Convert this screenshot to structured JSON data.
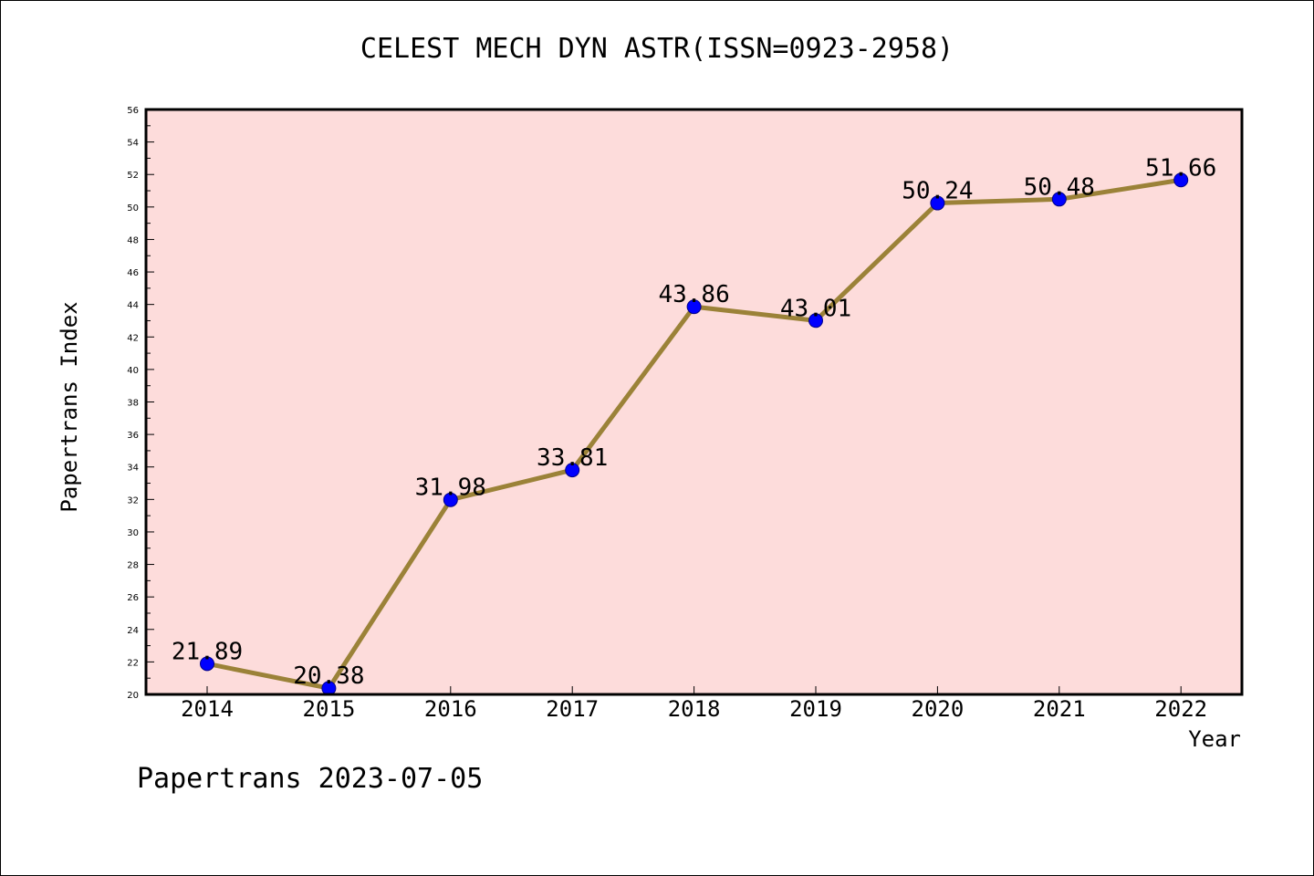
{
  "footer": "Papertrans 2023-07-05",
  "colors": {
    "plot_background": "#fddcdb",
    "line": "#9b8238",
    "marker": "#0000ff",
    "axis": "#000000"
  },
  "chart_data": {
    "type": "line",
    "title": "CELEST MECH DYN ASTR(ISSN=0923-2958)",
    "xlabel": "Year",
    "ylabel": "Papertrans Index",
    "categories": [
      "2014",
      "2015",
      "2016",
      "2017",
      "2018",
      "2019",
      "2020",
      "2021",
      "2022"
    ],
    "values": [
      21.89,
      20.38,
      31.98,
      33.81,
      43.86,
      43.01,
      50.24,
      50.48,
      51.66
    ],
    "data_labels": [
      "21.89",
      "20.38",
      "31.98",
      "33.81",
      "43.86",
      "43.01",
      "50.24",
      "50.48",
      "51.66"
    ],
    "ylim": [
      20,
      56
    ],
    "yticks": [
      20,
      22,
      24,
      26,
      28,
      30,
      32,
      34,
      36,
      38,
      40,
      42,
      44,
      46,
      48,
      50,
      52,
      54,
      56
    ],
    "grid": false,
    "legend": "none"
  }
}
